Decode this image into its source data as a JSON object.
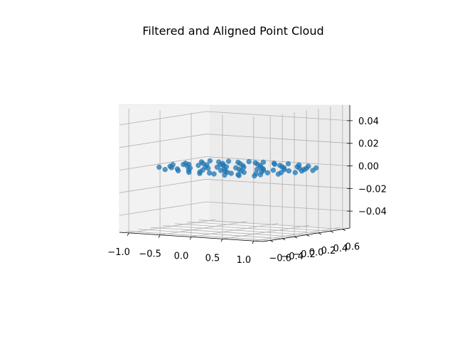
{
  "chart_data": {
    "type": "scatter",
    "projection": "3d",
    "title": "Filtered and Aligned Point Cloud",
    "xlabel": "",
    "ylabel": "",
    "zlabel": "",
    "grid": true,
    "xlim": [
      -1.15,
      1.15
    ],
    "ylim": [
      -0.72,
      0.72
    ],
    "zlim": [
      -0.055,
      0.055
    ],
    "xticks": [
      {
        "value": -1.0,
        "label": "−1.0"
      },
      {
        "value": -0.5,
        "label": "−0.5"
      },
      {
        "value": 0.0,
        "label": "0.0"
      },
      {
        "value": 0.5,
        "label": "0.5"
      },
      {
        "value": 1.0,
        "label": "1.0"
      }
    ],
    "yticks": [
      {
        "value": -0.6,
        "label": "−0.6"
      },
      {
        "value": -0.4,
        "label": "−0.4"
      },
      {
        "value": -0.2,
        "label": "−0.2"
      },
      {
        "value": 0.0,
        "label": "0.0"
      },
      {
        "value": 0.2,
        "label": "0.2"
      },
      {
        "value": 0.4,
        "label": "0.4"
      },
      {
        "value": 0.6,
        "label": "0.6"
      }
    ],
    "zticks": [
      {
        "value": 0.04,
        "label": "0.04"
      },
      {
        "value": 0.02,
        "label": "0.02"
      },
      {
        "value": 0.0,
        "label": "0.00"
      },
      {
        "value": -0.02,
        "label": "−0.02"
      },
      {
        "value": -0.04,
        "label": "−0.04"
      }
    ],
    "series": [
      {
        "color": "#1f77b4",
        "points": [
          [
            -0.94,
            -0.05,
            0.0
          ],
          [
            -0.9,
            0.12,
            0.0
          ],
          [
            -0.86,
            -0.18,
            0.0
          ],
          [
            -0.82,
            0.3,
            0.0
          ],
          [
            -0.78,
            0.05,
            0.0
          ],
          [
            -0.74,
            -0.28,
            0.0
          ],
          [
            -0.7,
            0.2,
            0.0
          ],
          [
            -0.66,
            -0.1,
            0.0
          ],
          [
            -0.62,
            0.38,
            0.0
          ],
          [
            -0.58,
            -0.35,
            0.0
          ],
          [
            -0.54,
            0.1,
            0.0
          ],
          [
            -0.5,
            -0.22,
            0.0
          ],
          [
            -0.46,
            0.28,
            0.0
          ],
          [
            -0.42,
            -0.05,
            0.0
          ],
          [
            -0.38,
            0.45,
            0.0
          ],
          [
            -0.35,
            -0.4,
            0.0
          ],
          [
            -0.32,
            0.15,
            0.0
          ],
          [
            -0.28,
            -0.15,
            0.0
          ],
          [
            -0.25,
            0.35,
            0.0
          ],
          [
            -0.22,
            -0.3,
            0.0
          ],
          [
            -0.18,
            0.05,
            0.0
          ],
          [
            -0.15,
            0.5,
            0.0
          ],
          [
            -0.12,
            -0.45,
            0.0
          ],
          [
            -0.08,
            0.22,
            0.0
          ],
          [
            -0.05,
            -0.12,
            0.0
          ],
          [
            -0.02,
            0.4,
            0.0
          ],
          [
            0.02,
            -0.25,
            0.0
          ],
          [
            0.05,
            0.1,
            0.0
          ],
          [
            0.08,
            -0.5,
            0.0
          ],
          [
            0.12,
            0.3,
            0.0
          ],
          [
            0.15,
            -0.08,
            0.0
          ],
          [
            0.18,
            0.48,
            0.0
          ],
          [
            0.22,
            -0.35,
            0.0
          ],
          [
            0.25,
            0.18,
            0.0
          ],
          [
            0.28,
            -0.18,
            0.0
          ],
          [
            0.32,
            0.42,
            0.0
          ],
          [
            0.35,
            -0.42,
            0.0
          ],
          [
            0.38,
            0.08,
            0.0
          ],
          [
            0.42,
            -0.28,
            0.0
          ],
          [
            0.45,
            0.32,
            0.0
          ],
          [
            0.48,
            -0.02,
            0.0
          ],
          [
            0.52,
            -0.48,
            0.0
          ],
          [
            0.55,
            0.25,
            0.0
          ],
          [
            0.58,
            -0.15,
            0.0
          ],
          [
            0.62,
            0.4,
            0.0
          ],
          [
            0.65,
            -0.32,
            0.0
          ],
          [
            0.68,
            0.12,
            0.0
          ],
          [
            0.72,
            -0.2,
            0.0
          ],
          [
            0.75,
            0.3,
            0.0
          ],
          [
            0.78,
            -0.38,
            0.0
          ],
          [
            0.82,
            0.05,
            0.0
          ],
          [
            0.86,
            -0.12,
            0.0
          ],
          [
            0.9,
            0.22,
            0.0
          ],
          [
            0.94,
            -0.25,
            0.0
          ],
          [
            0.98,
            0.1,
            0.0
          ],
          [
            1.02,
            -0.05,
            0.0
          ],
          [
            -0.92,
            -0.3,
            0.0
          ],
          [
            -0.8,
            0.42,
            0.0
          ],
          [
            -0.68,
            -0.45,
            0.0
          ],
          [
            -0.56,
            0.48,
            0.0
          ],
          [
            -0.44,
            -0.48,
            0.0
          ],
          [
            -0.3,
            0.55,
            0.0
          ],
          [
            -0.2,
            -0.55,
            0.0
          ],
          [
            -0.1,
            0.58,
            0.0
          ],
          [
            0.0,
            -0.58,
            0.0
          ],
          [
            0.1,
            0.55,
            0.0
          ],
          [
            0.2,
            -0.55,
            0.0
          ],
          [
            0.3,
            0.58,
            0.0
          ],
          [
            0.4,
            -0.58,
            0.0
          ],
          [
            0.5,
            0.55,
            0.0
          ],
          [
            0.6,
            -0.55,
            0.0
          ],
          [
            0.7,
            0.5,
            0.0
          ],
          [
            0.8,
            -0.5,
            0.0
          ],
          [
            0.92,
            0.4,
            0.0
          ],
          [
            -0.6,
            0.02,
            0.0
          ],
          [
            -0.4,
            0.18,
            0.0
          ],
          [
            -0.26,
            -0.02,
            0.0
          ],
          [
            0.0,
            0.02,
            0.0
          ],
          [
            0.14,
            -0.3,
            0.0
          ],
          [
            0.36,
            0.0,
            0.0
          ],
          [
            0.6,
            0.02,
            0.0
          ],
          [
            0.84,
            0.32,
            0.0
          ],
          [
            -0.84,
            0.02,
            0.0
          ],
          [
            1.06,
            0.2,
            0.0
          ]
        ]
      }
    ]
  }
}
